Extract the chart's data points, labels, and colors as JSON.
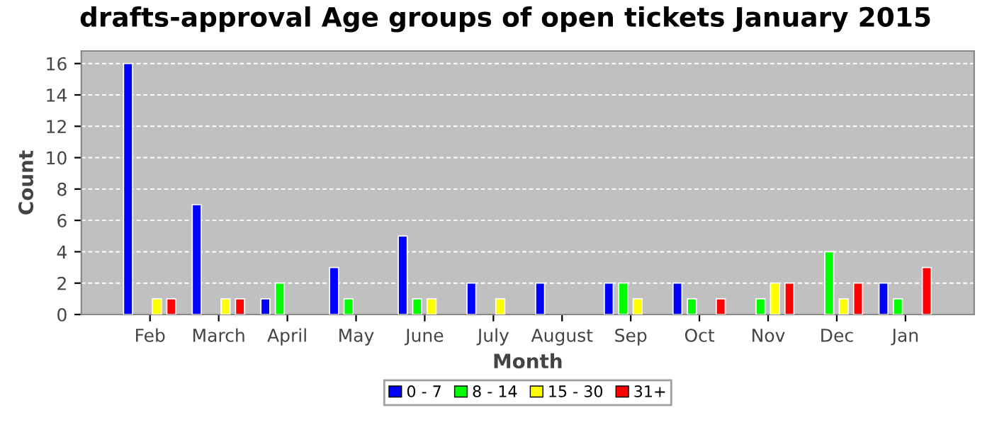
{
  "chart_data": {
    "type": "bar",
    "title": "drafts-approval Age groups of open tickets January 2015",
    "xlabel": "Month",
    "ylabel": "Count",
    "categories": [
      "Feb",
      "March",
      "April",
      "May",
      "June",
      "July",
      "August",
      "Sep",
      "Oct",
      "Nov",
      "Dec",
      "Jan"
    ],
    "series": [
      {
        "name": "0 - 7",
        "color": "#0000ff",
        "values": [
          16,
          7,
          1,
          3,
          5,
          2,
          2,
          2,
          2,
          null,
          null,
          2
        ]
      },
      {
        "name": "8 - 14",
        "color": "#00ff00",
        "values": [
          null,
          null,
          2,
          1,
          1,
          null,
          null,
          2,
          1,
          1,
          4,
          1
        ]
      },
      {
        "name": "15 - 30",
        "color": "#ffff00",
        "values": [
          1,
          1,
          null,
          null,
          1,
          1,
          null,
          1,
          null,
          2,
          1,
          null
        ]
      },
      {
        "name": "31+",
        "color": "#ff0000",
        "values": [
          1,
          1,
          null,
          null,
          null,
          null,
          null,
          null,
          1,
          2,
          2,
          3
        ]
      }
    ],
    "ylim": [
      0,
      16.8
    ],
    "yticks": [
      0,
      2,
      4,
      6,
      8,
      10,
      12,
      14,
      16
    ],
    "grid": "y",
    "legend": "bottom"
  }
}
